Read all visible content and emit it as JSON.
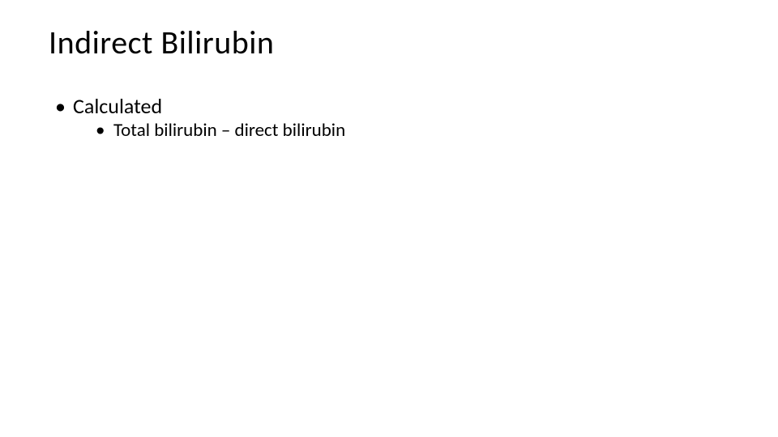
{
  "slide": {
    "title": "Indirect Bilirubin",
    "bullets": [
      {
        "text": "Calculated",
        "sub_bullets": [
          {
            "text": "Total bilirubin – direct bilirubin"
          }
        ]
      }
    ]
  },
  "styling": {
    "background_color": "#ffffff",
    "text_color": "#000000",
    "title_fontsize": 40,
    "bullet_level1_fontsize": 26,
    "bullet_level2_fontsize": 23,
    "font_family": "Calibri"
  }
}
